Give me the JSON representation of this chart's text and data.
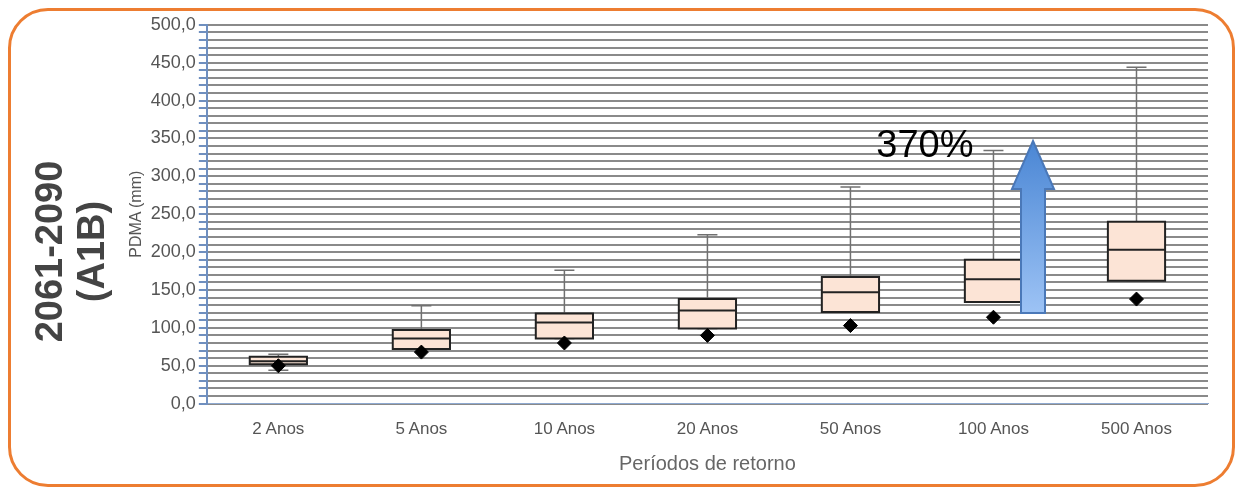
{
  "chart_data": {
    "type": "box",
    "title": "2061-2090 (A1B)",
    "xlabel": "Períodos de retorno",
    "ylabel": "PDMA (mm)",
    "categories": [
      "2 Anos",
      "5 Anos",
      "10 Anos",
      "20 Anos",
      "50 Anos",
      "100 Anos",
      "500 Anos"
    ],
    "ylim": [
      0,
      500
    ],
    "yticks": [
      {
        "value": 0,
        "label": "0,0"
      },
      {
        "value": 10,
        "label": null
      },
      {
        "value": 20,
        "label": null
      },
      {
        "value": 30,
        "label": null
      },
      {
        "value": 40,
        "label": null
      },
      {
        "value": 50,
        "label": "50,0"
      },
      {
        "value": 60,
        "label": null
      },
      {
        "value": 70,
        "label": null
      },
      {
        "value": 80,
        "label": null
      },
      {
        "value": 90,
        "label": null
      },
      {
        "value": 100,
        "label": "100,0"
      },
      {
        "value": 110,
        "label": null
      },
      {
        "value": 120,
        "label": null
      },
      {
        "value": 130,
        "label": null
      },
      {
        "value": 140,
        "label": null
      },
      {
        "value": 150,
        "label": "150,0"
      },
      {
        "value": 160,
        "label": null
      },
      {
        "value": 170,
        "label": null
      },
      {
        "value": 180,
        "label": null
      },
      {
        "value": 190,
        "label": null
      },
      {
        "value": 200,
        "label": "200,0"
      },
      {
        "value": 210,
        "label": null
      },
      {
        "value": 220,
        "label": null
      },
      {
        "value": 230,
        "label": null
      },
      {
        "value": 240,
        "label": null
      },
      {
        "value": 250,
        "label": "250,0"
      },
      {
        "value": 260,
        "label": null
      },
      {
        "value": 270,
        "label": null
      },
      {
        "value": 280,
        "label": null
      },
      {
        "value": 290,
        "label": null
      },
      {
        "value": 300,
        "label": "300,0"
      },
      {
        "value": 310,
        "label": null
      },
      {
        "value": 320,
        "label": null
      },
      {
        "value": 330,
        "label": null
      },
      {
        "value": 340,
        "label": null
      },
      {
        "value": 350,
        "label": "350,0"
      },
      {
        "value": 360,
        "label": null
      },
      {
        "value": 370,
        "label": null
      },
      {
        "value": 380,
        "label": null
      },
      {
        "value": 390,
        "label": null
      },
      {
        "value": 400,
        "label": "400,0"
      },
      {
        "value": 410,
        "label": null
      },
      {
        "value": 420,
        "label": null
      },
      {
        "value": 430,
        "label": null
      },
      {
        "value": 440,
        "label": null
      },
      {
        "value": 450,
        "label": "450,0"
      },
      {
        "value": 460,
        "label": null
      },
      {
        "value": 470,
        "label": null
      },
      {
        "value": 480,
        "label": null
      },
      {
        "value": 490,
        "label": null
      },
      {
        "value": 500,
        "label": "500,0"
      }
    ],
    "grid": "y",
    "legend": false,
    "series": [
      {
        "type": "box",
        "color": "#fce4d6",
        "boxes": [
          {
            "low": 44,
            "q1": 52,
            "median": 56,
            "q3": 62,
            "high": 65
          },
          {
            "low": 72,
            "q1": 72,
            "median": 86,
            "q3": 97,
            "high": 129
          },
          {
            "low": 86,
            "q1": 86,
            "median": 107,
            "q3": 119,
            "high": 176
          },
          {
            "low": 99,
            "q1": 99,
            "median": 123,
            "q3": 138,
            "high": 223
          },
          {
            "low": 121,
            "q1": 121,
            "median": 147,
            "q3": 167,
            "high": 286
          },
          {
            "low": 134,
            "q1": 134,
            "median": 164,
            "q3": 190,
            "high": 334
          },
          {
            "low": 162,
            "q1": 162,
            "median": 203,
            "q3": 240,
            "high": 444
          }
        ]
      },
      {
        "type": "scatter",
        "color": "#000000",
        "marker": "diamond",
        "x": [
          "2 Anos",
          "5 Anos",
          "10 Anos",
          "20 Anos",
          "50 Anos",
          "100 Anos",
          "500 Anos"
        ],
        "values": [
          50,
          68,
          80,
          90,
          103,
          114,
          138
        ]
      }
    ],
    "annotations": [
      {
        "text": "370%",
        "x": "100 Anos",
        "y": 340
      }
    ]
  }
}
